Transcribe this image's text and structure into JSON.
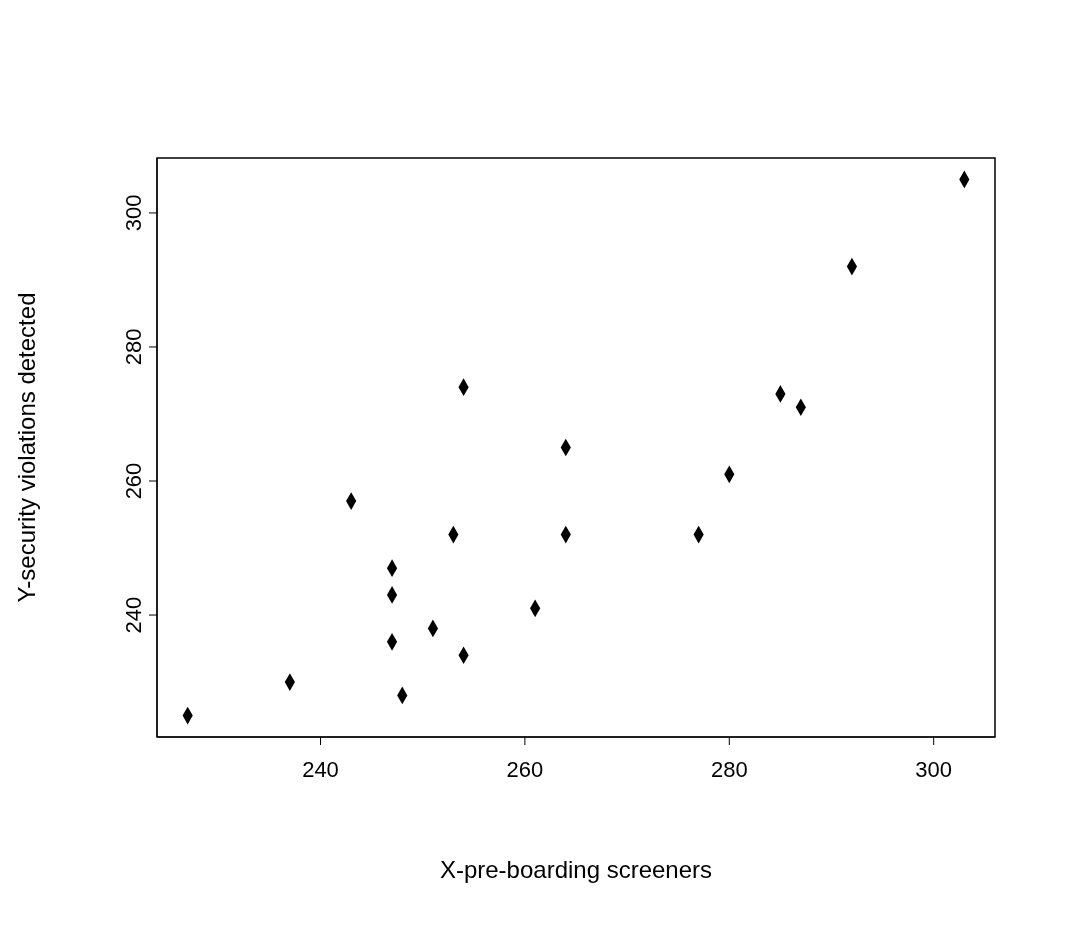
{
  "chart_data": {
    "type": "scatter",
    "xlabel": "X-pre-boarding screeners",
    "ylabel": "Y-security violations detected",
    "x": [
      227,
      237,
      243,
      247,
      247,
      247,
      248,
      251,
      253,
      254,
      254,
      261,
      264,
      264,
      277,
      280,
      285,
      287,
      292,
      303
    ],
    "values": [
      225,
      230,
      257,
      247,
      243,
      236,
      228,
      238,
      252,
      274,
      234,
      241,
      265,
      252,
      252,
      261,
      273,
      271,
      292,
      305
    ],
    "color": "#000000",
    "marker": "diamond",
    "grid": false,
    "xlim": [
      224,
      306
    ],
    "ylim": [
      221.8,
      308.2
    ],
    "xticks": [
      240,
      260,
      280,
      300
    ],
    "yticks": [
      240,
      260,
      280,
      300
    ]
  }
}
